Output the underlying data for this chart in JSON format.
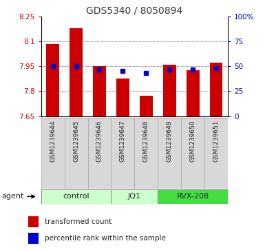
{
  "title": "GDS5340 / 8050894",
  "samples": [
    "GSM1239644",
    "GSM1239645",
    "GSM1239646",
    "GSM1239647",
    "GSM1239648",
    "GSM1239649",
    "GSM1239650",
    "GSM1239651"
  ],
  "bar_values": [
    8.085,
    8.18,
    7.95,
    7.875,
    7.775,
    7.96,
    7.925,
    7.97
  ],
  "percentile_values": [
    50,
    50,
    47,
    45,
    43,
    47,
    47,
    48
  ],
  "y_min": 7.65,
  "y_max": 8.25,
  "y_ticks": [
    7.65,
    7.8,
    7.95,
    8.1,
    8.25
  ],
  "y_tick_labels": [
    "7.65",
    "7.8",
    "7.95",
    "8.1",
    "8.25"
  ],
  "y2_ticks": [
    0,
    25,
    50,
    75,
    100
  ],
  "y2_tick_labels": [
    "0",
    "25",
    "50",
    "75",
    "100%"
  ],
  "bar_color": "#cc0000",
  "dot_color": "#0000cc",
  "left_tick_color": "#cc0000",
  "right_tick_color": "#0000cc",
  "group_spans": [
    [
      0,
      3,
      "control",
      "#ccffcc"
    ],
    [
      3,
      5,
      "JQ1",
      "#ccffcc"
    ],
    [
      5,
      8,
      "RVX-208",
      "#44dd44"
    ]
  ],
  "agent_label": "agent",
  "legend_bar_label": "transformed count",
  "legend_dot_label": "percentile rank within the sample"
}
